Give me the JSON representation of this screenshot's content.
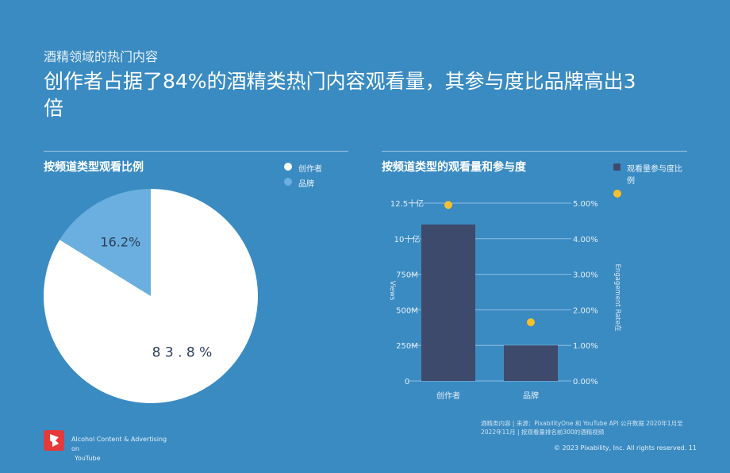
{
  "header": {
    "subtitle": "酒精领域的热门内容",
    "headline": "创作者占据了84%的酒精类热门内容观看量，其参与度比品牌高出3倍"
  },
  "left_panel": {
    "legend": [
      {
        "label": "创作者",
        "color": "#ffffff"
      },
      {
        "label": "品牌",
        "color": "#6aafdf"
      }
    ]
  },
  "right_panel": {
    "legend": [
      {
        "label": "观看量参与度比例",
        "color": "#3d4a6b",
        "shape": "square"
      },
      {
        "label": "",
        "color": "#f5c02e",
        "shape": "dot"
      }
    ],
    "y_left_ticks": [
      "12.5十亿",
      "10十亿",
      "750M",
      "500M",
      "250M",
      "0"
    ],
    "y_right_ticks": [
      "5.00%",
      "4.00%",
      "3.00%",
      "2.00%",
      "1.00%",
      "0.00%"
    ],
    "y_left_axis_label": "Views",
    "y_right_axis_label": "Engagement Rate在"
  },
  "chart_data": [
    {
      "type": "pie",
      "title": "按频道类型观看比例",
      "labels": [
        "创作者",
        "品牌"
      ],
      "values": [
        83.8,
        16.2
      ],
      "value_labels": [
        "8 3 . 8 %",
        "16.2%"
      ],
      "colors": [
        "#ffffff",
        "#6aafdf"
      ],
      "legend_position": "top-right"
    },
    {
      "type": "bar",
      "title": "按频道类型的观看量和参与度",
      "categories": [
        "创作者",
        "品牌"
      ],
      "series": [
        {
          "name": "观看量参与度比例",
          "axis": "left",
          "values": [
            1100000000,
            250000000
          ],
          "color": "#3d4a6b"
        },
        {
          "axis": "right",
          "type": "scatter",
          "values": [
            4.95,
            1.65
          ],
          "color": "#f5c02e"
        }
      ],
      "ylim_left": [
        0,
        1250000000
      ],
      "ylim_right": [
        0,
        5
      ],
      "grid": true,
      "legend_position": "top-right"
    }
  ],
  "footer": {
    "footnote": "酒精类内容 | 来源：PixabilityOne 和 YouTube API 公开数据 2020年1月至2022年11月 | 按观看量排名前300的酒精视频",
    "copyright": "© 2023 Pixability, Inc. All rights reserved. 11",
    "brand_line1": "Alcohol Content & Advertising on",
    "brand_line2": "YouTube"
  }
}
